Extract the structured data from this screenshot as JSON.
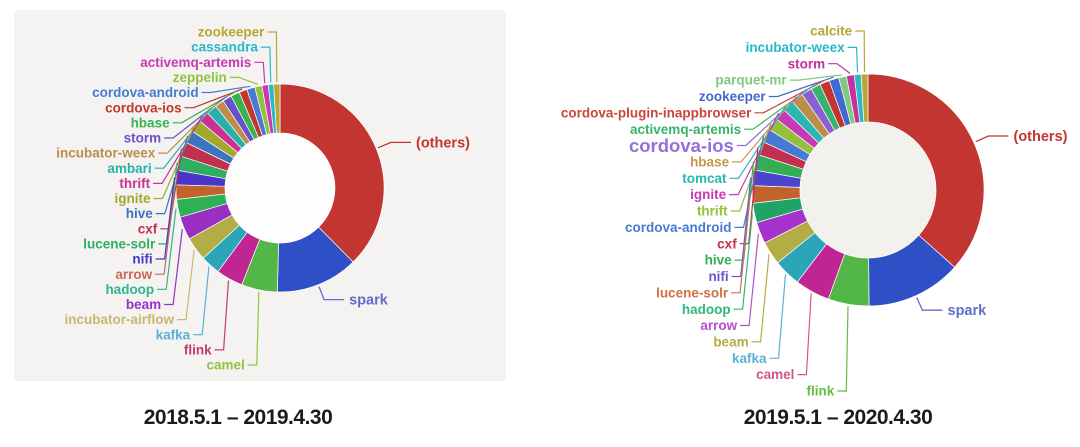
{
  "figure": {
    "captions": {
      "left": "2018.5.1 – 2019.4.30",
      "right": "2019.5.1 – 2020.4.30"
    }
  },
  "chart_data": [
    {
      "type": "pie",
      "subtype": "donut",
      "title": "2018.5.1 – 2019.4.30",
      "legend_position": "none",
      "label_layout": "outside-with-leader-lines",
      "panel_background": "#f4f3f2",
      "hole_color": "#fdfdfd",
      "values_unit": "approx-degrees-of-arc",
      "slices": [
        {
          "name": "(others)",
          "value": 135,
          "color": "#c23531",
          "label_side": "right"
        },
        {
          "name": "spark",
          "value": 46,
          "color": "#2e4fc5",
          "label_side": "right",
          "label_color": "#5f6fc9"
        },
        {
          "name": "camel",
          "value": 20,
          "color": "#53b748",
          "label_side": "left",
          "label_color": "#8fc63e"
        },
        {
          "name": "flink",
          "value": 15,
          "color": "#c02594",
          "label_side": "left",
          "label_color": "#c53a70"
        },
        {
          "name": "kafka",
          "value": 11,
          "color": "#2aa6b8",
          "label_side": "left",
          "label_color": "#5bb0d8"
        },
        {
          "name": "incubator-airflow",
          "value": 13,
          "color": "#b3ad45",
          "label_side": "left",
          "label_color": "#c8b96a"
        },
        {
          "name": "beam",
          "value": 13,
          "color": "#9a2fc4",
          "label_side": "left"
        },
        {
          "name": "hadoop",
          "value": 10,
          "color": "#2eb155",
          "label_side": "left",
          "label_color": "#2eb58a"
        },
        {
          "name": "arrow",
          "value": 8,
          "color": "#c2622d",
          "label_side": "left",
          "label_color": "#c96a57"
        },
        {
          "name": "nifi",
          "value": 8,
          "color": "#4936c8",
          "label_side": "left"
        },
        {
          "name": "lucene-solr",
          "value": 8,
          "color": "#31ad62",
          "label_side": "left"
        },
        {
          "name": "cxf",
          "value": 8,
          "color": "#c32f4f",
          "label_side": "left"
        },
        {
          "name": "hive",
          "value": 7,
          "color": "#3c74c3",
          "label_side": "left"
        },
        {
          "name": "ignite",
          "value": 7,
          "color": "#a3a82d",
          "label_side": "left"
        },
        {
          "name": "thrift",
          "value": 6,
          "color": "#cb3096",
          "label_side": "left"
        },
        {
          "name": "ambari",
          "value": 6,
          "color": "#25b2a8",
          "label_side": "left"
        },
        {
          "name": "incubator-weex",
          "value": 5,
          "color": "#bd8d4a",
          "label_side": "left"
        },
        {
          "name": "storm",
          "value": 5,
          "color": "#6a52c5",
          "label_side": "left"
        },
        {
          "name": "hbase",
          "value": 5,
          "color": "#38b44c",
          "label_side": "left"
        },
        {
          "name": "cordova-ios",
          "value": 4.5,
          "color": "#c23531",
          "label_side": "left"
        },
        {
          "name": "cordova-android",
          "value": 4.5,
          "color": "#477bd1",
          "label_side": "left"
        },
        {
          "name": "zeppelin",
          "value": 4,
          "color": "#93c13d",
          "label_side": "left"
        },
        {
          "name": "activemq-artemis",
          "value": 3.5,
          "color": "#c539b4",
          "label_side": "left"
        },
        {
          "name": "cassandra",
          "value": 3,
          "color": "#29b8c8",
          "label_side": "left"
        },
        {
          "name": "zookeeper",
          "value": 3.5,
          "color": "#b9a633",
          "label_side": "left"
        }
      ]
    },
    {
      "type": "pie",
      "subtype": "donut",
      "title": "2019.5.1 – 2020.4.30",
      "legend_position": "none",
      "label_layout": "outside-with-leader-lines",
      "panel_background": "#ffffff",
      "hole_color": "#f3f1ee",
      "values_unit": "approx-degrees-of-arc",
      "slices": [
        {
          "name": "(others)",
          "value": 135,
          "color": "#c23531",
          "label_side": "right"
        },
        {
          "name": "spark",
          "value": 49,
          "color": "#2e4fc5",
          "label_side": "right",
          "label_color": "#5f6fc9"
        },
        {
          "name": "flink",
          "value": 21,
          "color": "#53b748",
          "label_side": "left",
          "label_color": "#66bb44"
        },
        {
          "name": "camel",
          "value": 18,
          "color": "#c02594",
          "label_side": "left",
          "label_color": "#d4548c"
        },
        {
          "name": "kafka",
          "value": 14,
          "color": "#2aa6b8",
          "label_side": "left",
          "label_color": "#5bb0d8"
        },
        {
          "name": "beam",
          "value": 12,
          "color": "#b3ad45",
          "label_side": "left"
        },
        {
          "name": "arrow",
          "value": 11,
          "color": "#a532cc",
          "label_side": "left",
          "label_color": "#b44fc8"
        },
        {
          "name": "hadoop",
          "value": 10,
          "color": "#20a465",
          "label_side": "left",
          "label_color": "#2eb87a"
        },
        {
          "name": "lucene-solr",
          "value": 9,
          "color": "#c2622d",
          "label_side": "left",
          "label_color": "#cd7144"
        },
        {
          "name": "nifi",
          "value": 8,
          "color": "#4a44ce",
          "label_side": "left",
          "label_color": "#6a5acd"
        },
        {
          "name": "hive",
          "value": 8,
          "color": "#35ad52",
          "label_side": "left"
        },
        {
          "name": "cxf",
          "value": 7,
          "color": "#c32f4f",
          "label_side": "left"
        },
        {
          "name": "cordova-android",
          "value": 7,
          "color": "#477bd1",
          "label_side": "left"
        },
        {
          "name": "thrift",
          "value": 6.5,
          "color": "#93c13d",
          "label_side": "left"
        },
        {
          "name": "ignite",
          "value": 6,
          "color": "#c539b4",
          "label_side": "left"
        },
        {
          "name": "tomcat",
          "value": 6,
          "color": "#29b8b0",
          "label_side": "left"
        },
        {
          "name": "hbase",
          "value": 6,
          "color": "#bd8d4a",
          "label_side": "left",
          "label_color": "#c8954f"
        },
        {
          "name": "cordova-ios",
          "value": 5.5,
          "color": "#8a5fd3",
          "label_side": "left",
          "label_emphasis": true,
          "label_color": "#9370db"
        },
        {
          "name": "activemq-artemis",
          "value": 5,
          "color": "#35b26b",
          "label_side": "left"
        },
        {
          "name": "cordova-plugin-inappbrowser",
          "value": 5,
          "color": "#c23531",
          "label_side": "left",
          "label_color": "#c9453e"
        },
        {
          "name": "zookeeper",
          "value": 5,
          "color": "#4169d1",
          "label_side": "left"
        },
        {
          "name": "parquet-mr",
          "value": 4,
          "color": "#81c97f",
          "label_side": "left"
        },
        {
          "name": "storm",
          "value": 4,
          "color": "#c5309c",
          "label_side": "left"
        },
        {
          "name": "incubator-weex",
          "value": 3.5,
          "color": "#29b8c8",
          "label_side": "left"
        },
        {
          "name": "calcite",
          "value": 3.5,
          "color": "#b9a633",
          "label_side": "left"
        }
      ]
    }
  ]
}
